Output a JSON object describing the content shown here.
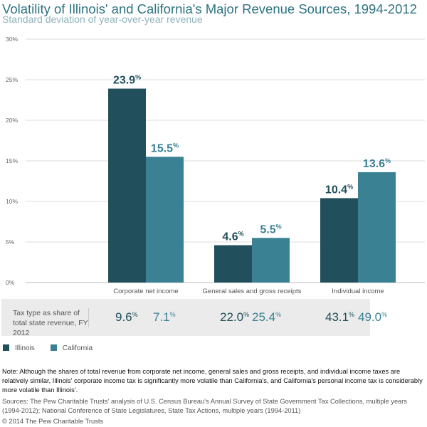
{
  "chart_data": {
    "type": "bar",
    "title": "Volatility of Illinois' and California's Major Revenue Sources, 1994-2012",
    "subtitle": "Standard deviation of year-over-year revenue",
    "categories": [
      "Corporate net income",
      "General sales and gross receipts",
      "Individual income"
    ],
    "series": [
      {
        "name": "Illinois",
        "color": "#214f5b",
        "values": [
          23.9,
          4.6,
          10.4
        ]
      },
      {
        "name": "California",
        "color": "#3a8193",
        "values": [
          15.5,
          5.5,
          13.6
        ]
      }
    ],
    "ylim": [
      0,
      30
    ],
    "yticks": [
      "0%",
      "5%",
      "10%",
      "15%",
      "20%",
      "25%",
      "30%"
    ],
    "grid": true,
    "legend": "bottom-left"
  },
  "table": {
    "label": "Tax type as share of total state revenue, FY 2012",
    "values": [
      {
        "il": "9.6",
        "ca": "7.1"
      },
      {
        "il": "22.0",
        "ca": "25.4"
      },
      {
        "il": "43.1",
        "ca": "49.0"
      }
    ],
    "unit": "%"
  },
  "note": "Note: Although the shares of total revenue from corporate net income, general sales and gross receipts, and individual income taxes are relatively similar, Illinois' corporate income tax is significantly more volatile than California's, and California's personal income tax is considerably more volatile than Illinois'.",
  "sources": "Sources: The Pew Charitable Trusts' analysis of U.S. Census Bureau's Annual Survey of State Government Tax Collections, multiple years (1994-2012); National Conference of State Legislatures, State Tax Actions, multiple years (1994-2011)",
  "copyright": "© 2014 The Pew Charitable Trusts"
}
